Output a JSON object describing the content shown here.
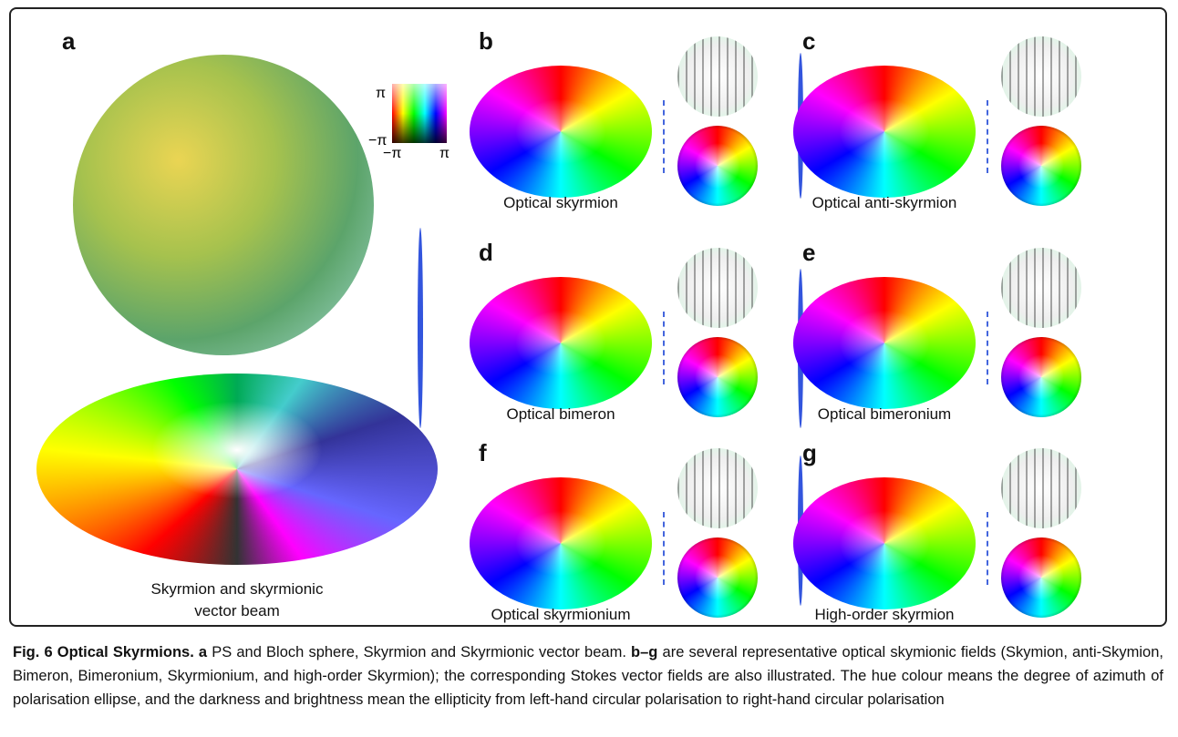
{
  "figure": {
    "panels": [
      {
        "label": "a",
        "caption": [
          "Skyrmion and skyrmionic",
          "vector beam"
        ],
        "colorbar": {
          "top": "π",
          "bottom": "−π",
          "left": "−π",
          "right": "π"
        }
      },
      {
        "label": "b",
        "caption": "Optical skyrmion"
      },
      {
        "label": "c",
        "caption": "Optical anti-skyrmion"
      },
      {
        "label": "d",
        "caption": "Optical bimeron"
      },
      {
        "label": "e",
        "caption": "Optical bimeronium"
      },
      {
        "label": "f",
        "caption": "Optical skyrmionium"
      },
      {
        "label": "g",
        "caption": "High-order skyrmion"
      }
    ],
    "caption": [
      {
        "text": "Fig. 6 Optical Skyrmions.",
        "bold": true
      },
      {
        "text": " a",
        "bold": true
      },
      {
        "text": " PS and Bloch sphere, Skyrmion and Skyrmionic vector beam. ",
        "bold": false
      },
      {
        "text": "b–g",
        "bold": true
      },
      {
        "text": " are several representative optical skymionic fields (Skymion, anti-Skymion, Bimeron, Bimeronium, Skyrmionium, and high-order Skyrmion); the corresponding Stokes vector fields are also illustrated. The hue colour means the degree of azimuth of polarisation ellipse, and the darkness and brightness mean the ellipticity from left-hand circular polarisation to right-hand circular polarisation",
        "bold": false
      }
    ]
  }
}
